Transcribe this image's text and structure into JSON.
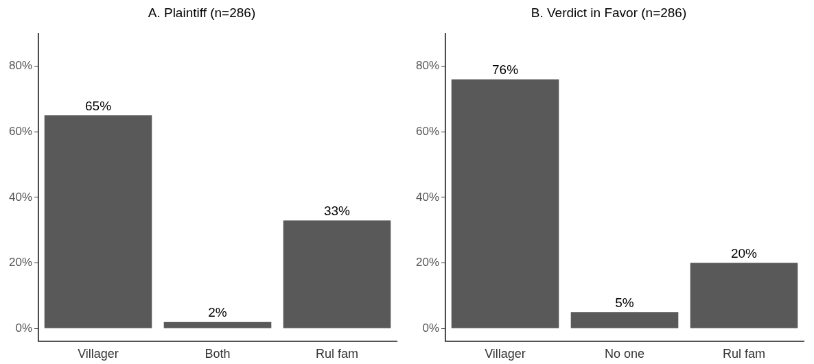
{
  "chart_data": [
    {
      "type": "bar",
      "title": "A. Plaintiff (n=286)",
      "categories": [
        "Villager",
        "Both",
        "Rul fam"
      ],
      "values": [
        65,
        2,
        33
      ],
      "value_labels": [
        "65%",
        "2%",
        "33%"
      ],
      "color": "#595959",
      "ylim": [
        -3.8,
        90
      ],
      "yticks": [
        {
          "value": 0,
          "label": "0%"
        },
        {
          "value": 20,
          "label": "20%"
        },
        {
          "value": 40,
          "label": "40%"
        },
        {
          "value": 60,
          "label": "60%"
        },
        {
          "value": 80,
          "label": "80%"
        }
      ],
      "grid": false,
      "legend": false
    },
    {
      "type": "bar",
      "title": "B. Verdict in Favor (n=286)",
      "categories": [
        "Villager",
        "No one",
        "Rul fam"
      ],
      "values": [
        76,
        5,
        20
      ],
      "value_labels": [
        "76%",
        "5%",
        "20%"
      ],
      "color": "#595959",
      "ylim": [
        -3.8,
        90
      ],
      "yticks": [
        {
          "value": 0,
          "label": "0%"
        },
        {
          "value": 20,
          "label": "20%"
        },
        {
          "value": 40,
          "label": "40%"
        },
        {
          "value": 60,
          "label": "60%"
        },
        {
          "value": 80,
          "label": "80%"
        }
      ],
      "grid": false,
      "legend": false
    }
  ]
}
